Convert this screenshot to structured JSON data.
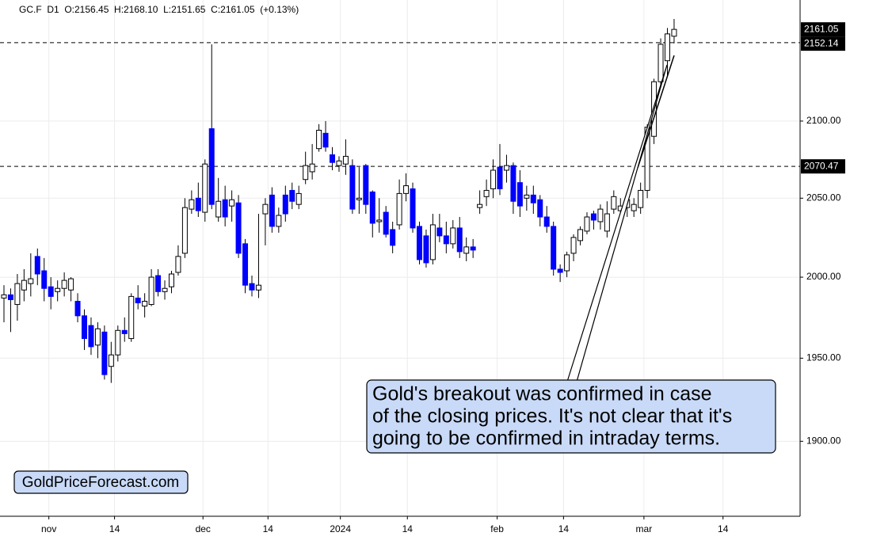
{
  "chart_data": {
    "type": "candlestick",
    "header": "GC.F  D1  O:2156.45  H:2168.10  L:2151.65  C:2161.05  (+0.13%)",
    "log_scale": true,
    "grid": true,
    "up_color": "#ffffff",
    "down_color": "#0000ff",
    "ylim": [
      1856,
      2181
    ],
    "yticks": [
      {
        "value": 1900,
        "label": "1900.00"
      },
      {
        "value": 1950,
        "label": "1950.00"
      },
      {
        "value": 2000,
        "label": "2000.00"
      },
      {
        "value": 2050,
        "label": "2050.00"
      },
      {
        "value": 2100,
        "label": "2100.00"
      }
    ],
    "xlim": [
      -0.59,
      118.8
    ],
    "xticks": [
      {
        "value": 6.7,
        "label": "nov"
      },
      {
        "value": 16.5,
        "label": "14"
      },
      {
        "value": 29.7,
        "label": "dec"
      },
      {
        "value": 39.4,
        "label": "14"
      },
      {
        "value": 50.2,
        "label": "2024"
      },
      {
        "value": 60.2,
        "label": "14"
      },
      {
        "value": 73.6,
        "label": "feb"
      },
      {
        "value": 83.5,
        "label": "14"
      },
      {
        "value": 95.5,
        "label": "mar"
      },
      {
        "value": 107.3,
        "label": "14"
      }
    ],
    "levels": [
      2152.14,
      2070.47
    ],
    "price_labels": [
      2161.05,
      2152.14,
      2070.47
    ],
    "annotation": [
      "Gold's breakout was confirmed in case",
      "of the closing prices. It's not clear that it's",
      "going to be confirmed in intraday terms."
    ],
    "watermark": "GoldPriceForecast.com",
    "candles": [
      {
        "o": 1987,
        "h": 1995,
        "l": 1972,
        "c": 1989
      },
      {
        "o": 1989,
        "h": 1993,
        "l": 1966,
        "c": 1986
      },
      {
        "o": 1983,
        "h": 2002,
        "l": 1973,
        "c": 1996
      },
      {
        "o": 1992,
        "h": 2005,
        "l": 1985,
        "c": 1998
      },
      {
        "o": 1996,
        "h": 2015,
        "l": 1988,
        "c": 1999
      },
      {
        "o": 2013,
        "h": 2018,
        "l": 1995,
        "c": 2002
      },
      {
        "o": 2004,
        "h": 2012,
        "l": 1985,
        "c": 1993
      },
      {
        "o": 1994,
        "h": 2000,
        "l": 1980,
        "c": 1988
      },
      {
        "o": 1991,
        "h": 1998,
        "l": 1985,
        "c": 1993
      },
      {
        "o": 1993,
        "h": 2003,
        "l": 1988,
        "c": 1998
      },
      {
        "o": 1992,
        "h": 2000,
        "l": 1985,
        "c": 1999
      },
      {
        "o": 1985,
        "h": 1990,
        "l": 1972,
        "c": 1976
      },
      {
        "o": 1976,
        "h": 1980,
        "l": 1955,
        "c": 1962
      },
      {
        "o": 1970,
        "h": 1975,
        "l": 1952,
        "c": 1957
      },
      {
        "o": 1958,
        "h": 1972,
        "l": 1950,
        "c": 1968
      },
      {
        "o": 1966,
        "h": 1970,
        "l": 1937,
        "c": 1940
      },
      {
        "o": 1945,
        "h": 1960,
        "l": 1935,
        "c": 1952
      },
      {
        "o": 1952,
        "h": 1970,
        "l": 1948,
        "c": 1967
      },
      {
        "o": 1967,
        "h": 1975,
        "l": 1960,
        "c": 1965
      },
      {
        "o": 1962,
        "h": 1990,
        "l": 1960,
        "c": 1988
      },
      {
        "o": 1987,
        "h": 1995,
        "l": 1980,
        "c": 1984
      },
      {
        "o": 1982,
        "h": 1990,
        "l": 1975,
        "c": 1985
      },
      {
        "o": 1983,
        "h": 2005,
        "l": 1982,
        "c": 2000
      },
      {
        "o": 2001,
        "h": 2005,
        "l": 1988,
        "c": 1991
      },
      {
        "o": 1991,
        "h": 1998,
        "l": 1986,
        "c": 1993
      },
      {
        "o": 1994,
        "h": 2004,
        "l": 1990,
        "c": 2002
      },
      {
        "o": 2003,
        "h": 2020,
        "l": 2001,
        "c": 2013
      },
      {
        "o": 2015,
        "h": 2050,
        "l": 2012,
        "c": 2044
      },
      {
        "o": 2043,
        "h": 2055,
        "l": 2040,
        "c": 2049
      },
      {
        "o": 2050,
        "h": 2060,
        "l": 2038,
        "c": 2042
      },
      {
        "o": 2041,
        "h": 2075,
        "l": 2035,
        "c": 2072
      },
      {
        "o": 2095,
        "h": 2151,
        "l": 2043,
        "c": 2046
      },
      {
        "o": 2038,
        "h": 2063,
        "l": 2035,
        "c": 2048
      },
      {
        "o": 2049,
        "h": 2058,
        "l": 2032,
        "c": 2038
      },
      {
        "o": 2045,
        "h": 2055,
        "l": 2035,
        "c": 2049
      },
      {
        "o": 2047,
        "h": 2052,
        "l": 2012,
        "c": 2015
      },
      {
        "o": 2021,
        "h": 2024,
        "l": 1990,
        "c": 1995
      },
      {
        "o": 1996,
        "h": 2001,
        "l": 1988,
        "c": 1992
      },
      {
        "o": 1992,
        "h": 2040,
        "l": 1987,
        "c": 1995
      },
      {
        "o": 2040,
        "h": 2050,
        "l": 2020,
        "c": 2046
      },
      {
        "o": 2052,
        "h": 2057,
        "l": 2028,
        "c": 2032
      },
      {
        "o": 2032,
        "h": 2044,
        "l": 2028,
        "c": 2039
      },
      {
        "o": 2052,
        "h": 2058,
        "l": 2035,
        "c": 2040
      },
      {
        "o": 2055,
        "h": 2060,
        "l": 2043,
        "c": 2048
      },
      {
        "o": 2046,
        "h": 2058,
        "l": 2043,
        "c": 2053
      },
      {
        "o": 2062,
        "h": 2080,
        "l": 2059,
        "c": 2071
      },
      {
        "o": 2067,
        "h": 2085,
        "l": 2062,
        "c": 2072
      },
      {
        "o": 2082,
        "h": 2098,
        "l": 2080,
        "c": 2094
      },
      {
        "o": 2092,
        "h": 2100,
        "l": 2080,
        "c": 2083
      },
      {
        "o": 2078,
        "h": 2083,
        "l": 2068,
        "c": 2073
      },
      {
        "o": 2071,
        "h": 2077,
        "l": 2067,
        "c": 2074
      },
      {
        "o": 2072,
        "h": 2088,
        "l": 2065,
        "c": 2077
      },
      {
        "o": 2071,
        "h": 2075,
        "l": 2040,
        "c": 2043
      },
      {
        "o": 2049,
        "h": 2070,
        "l": 2040,
        "c": 2050
      },
      {
        "o": 2071,
        "h": 2072,
        "l": 2040,
        "c": 2046
      },
      {
        "o": 2054,
        "h": 2055,
        "l": 2025,
        "c": 2034
      },
      {
        "o": 2035,
        "h": 2050,
        "l": 2028,
        "c": 2036
      },
      {
        "o": 2041,
        "h": 2045,
        "l": 2025,
        "c": 2027
      },
      {
        "o": 2030,
        "h": 2035,
        "l": 2015,
        "c": 2020
      },
      {
        "o": 2033,
        "h": 2062,
        "l": 2030,
        "c": 2053
      },
      {
        "o": 2053,
        "h": 2066,
        "l": 2048,
        "c": 2058
      },
      {
        "o": 2056,
        "h": 2060,
        "l": 2028,
        "c": 2031
      },
      {
        "o": 2032,
        "h": 2035,
        "l": 2008,
        "c": 2011
      },
      {
        "o": 2026,
        "h": 2030,
        "l": 2006,
        "c": 2009
      },
      {
        "o": 2011,
        "h": 2040,
        "l": 2008,
        "c": 2033
      },
      {
        "o": 2031,
        "h": 2040,
        "l": 2022,
        "c": 2026
      },
      {
        "o": 2026,
        "h": 2035,
        "l": 2015,
        "c": 2021
      },
      {
        "o": 2021,
        "h": 2036,
        "l": 2018,
        "c": 2031
      },
      {
        "o": 2031,
        "h": 2038,
        "l": 2012,
        "c": 2016
      },
      {
        "o": 2015,
        "h": 2025,
        "l": 2010,
        "c": 2019
      },
      {
        "o": 2019,
        "h": 2024,
        "l": 2012,
        "c": 2017
      },
      {
        "o": 2044,
        "h": 2055,
        "l": 2040,
        "c": 2046
      },
      {
        "o": 2051,
        "h": 2062,
        "l": 2045,
        "c": 2055
      },
      {
        "o": 2056,
        "h": 2075,
        "l": 2050,
        "c": 2068
      },
      {
        "o": 2070,
        "h": 2085,
        "l": 2052,
        "c": 2056
      },
      {
        "o": 2068,
        "h": 2078,
        "l": 2060,
        "c": 2071
      },
      {
        "o": 2071,
        "h": 2073,
        "l": 2040,
        "c": 2048
      },
      {
        "o": 2060,
        "h": 2068,
        "l": 2038,
        "c": 2045
      },
      {
        "o": 2050,
        "h": 2058,
        "l": 2042,
        "c": 2052
      },
      {
        "o": 2052,
        "h": 2058,
        "l": 2040,
        "c": 2047
      },
      {
        "o": 2049,
        "h": 2052,
        "l": 2032,
        "c": 2038
      },
      {
        "o": 2038,
        "h": 2045,
        "l": 2028,
        "c": 2032
      },
      {
        "o": 2032,
        "h": 2035,
        "l": 2001,
        "c": 2005
      },
      {
        "o": 2005,
        "h": 2008,
        "l": 1997,
        "c": 2003
      },
      {
        "o": 2004,
        "h": 2016,
        "l": 2000,
        "c": 2014
      },
      {
        "o": 2015,
        "h": 2027,
        "l": 2010,
        "c": 2025
      },
      {
        "o": 2023,
        "h": 2032,
        "l": 2020,
        "c": 2030
      },
      {
        "o": 2029,
        "h": 2041,
        "l": 2027,
        "c": 2038
      },
      {
        "o": 2040,
        "h": 2042,
        "l": 2030,
        "c": 2036
      },
      {
        "o": 2035,
        "h": 2046,
        "l": 2030,
        "c": 2043
      },
      {
        "o": 2029,
        "h": 2048,
        "l": 2025,
        "c": 2040
      },
      {
        "o": 2043,
        "h": 2055,
        "l": 2040,
        "c": 2051
      },
      {
        "o": 2042,
        "h": 2050,
        "l": 2036,
        "c": 2045
      },
      {
        "o": 2044,
        "h": 2052,
        "l": 2038,
        "c": 2049
      },
      {
        "o": 2042,
        "h": 2050,
        "l": 2038,
        "c": 2046
      },
      {
        "o": 2044,
        "h": 2060,
        "l": 2040,
        "c": 2055
      },
      {
        "o": 2055,
        "h": 2098,
        "l": 2050,
        "c": 2096
      },
      {
        "o": 2090,
        "h": 2128,
        "l": 2085,
        "c": 2126
      },
      {
        "o": 2126,
        "h": 2155,
        "l": 2122,
        "c": 2151
      },
      {
        "o": 2140,
        "h": 2162,
        "l": 2130,
        "c": 2158
      },
      {
        "o": 2156.45,
        "h": 2168.1,
        "l": 2151.65,
        "c": 2161.05
      }
    ]
  }
}
